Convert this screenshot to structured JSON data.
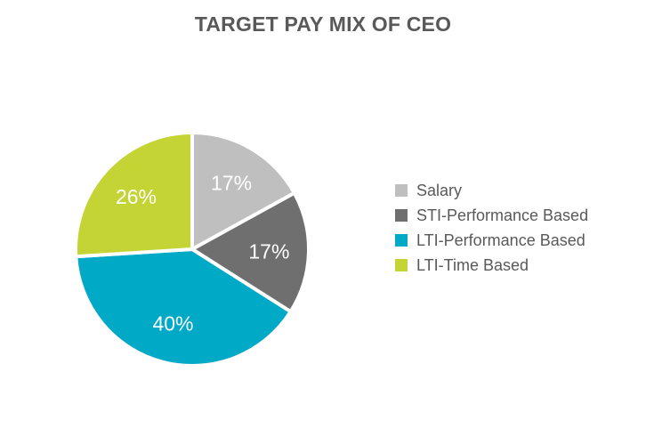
{
  "chart_data": {
    "type": "pie",
    "title": "TARGET PAY MIX OF CEO",
    "slices": [
      {
        "label": "Salary",
        "value": 17,
        "display": "17%",
        "color": "#bfbfbf"
      },
      {
        "label": "STI-Performance Based",
        "value": 17,
        "display": "17%",
        "color": "#6f6f6f"
      },
      {
        "label": "LTI-Performance Based",
        "value": 40,
        "display": "40%",
        "color": "#00a9c6"
      },
      {
        "label": "LTI-Time Based",
        "value": 26,
        "display": "26%",
        "color": "#c3d434"
      }
    ],
    "legend_position": "right"
  }
}
